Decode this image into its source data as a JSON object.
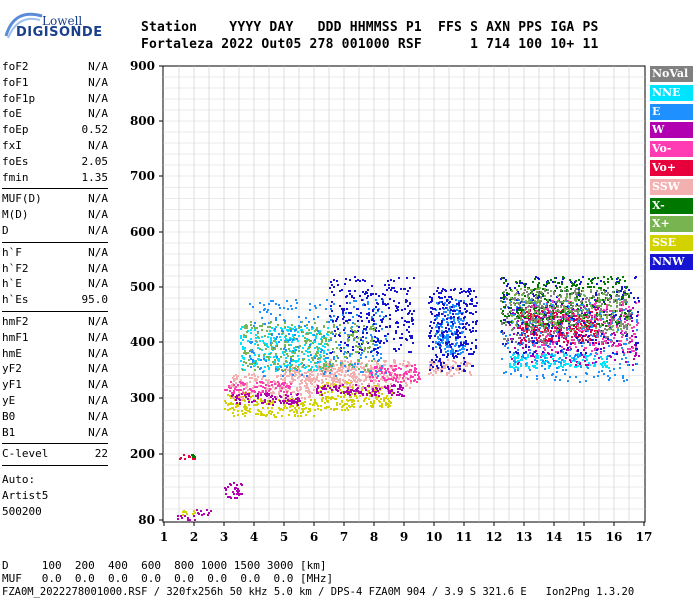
{
  "logo": {
    "top": "Lowell",
    "bottom": "DIGISONDE"
  },
  "header": {
    "labels": "Station    YYYY DAY   DDD HHMMSS P1  FFS S AXN PPS IGA PS",
    "values": "Fortaleza 2022 Out05 278 001000 RSF      1 714 100 10+ 11"
  },
  "params": {
    "group1": [
      {
        "k": "foF2",
        "v": "N/A"
      },
      {
        "k": "foF1",
        "v": "N/A"
      },
      {
        "k": "foF1p",
        "v": "N/A"
      },
      {
        "k": "foE",
        "v": "N/A"
      },
      {
        "k": "foEp",
        "v": "0.52"
      },
      {
        "k": "fxI",
        "v": "N/A"
      },
      {
        "k": "foEs",
        "v": "2.05"
      },
      {
        "k": "fmin",
        "v": "1.35"
      }
    ],
    "group2": [
      {
        "k": "MUF(D)",
        "v": "N/A"
      },
      {
        "k": "M(D)",
        "v": "N/A"
      },
      {
        "k": "D",
        "v": "N/A"
      }
    ],
    "group3": [
      {
        "k": "h`F",
        "v": "N/A"
      },
      {
        "k": "h`F2",
        "v": "N/A"
      },
      {
        "k": "h`E",
        "v": "N/A"
      },
      {
        "k": "h`Es",
        "v": "95.0"
      }
    ],
    "group4": [
      {
        "k": "hmF2",
        "v": "N/A"
      },
      {
        "k": "hmF1",
        "v": "N/A"
      },
      {
        "k": "hmE",
        "v": "N/A"
      },
      {
        "k": "yF2",
        "v": "N/A"
      },
      {
        "k": "yF1",
        "v": "N/A"
      },
      {
        "k": "yE",
        "v": "N/A"
      },
      {
        "k": "B0",
        "v": "N/A"
      },
      {
        "k": "B1",
        "v": "N/A"
      }
    ],
    "clevel": {
      "k": "C-level",
      "v": "22"
    },
    "auto": [
      "Auto:",
      "Artist5",
      "500200"
    ]
  },
  "legend": [
    {
      "label": "NoVal",
      "color": "#808080"
    },
    {
      "label": "NNE",
      "color": "#00e5ff"
    },
    {
      "label": "E",
      "color": "#1e90ff"
    },
    {
      "label": "W",
      "color": "#b000b0"
    },
    {
      "label": "Vo-",
      "color": "#ff3cb4"
    },
    {
      "label": "Vo+",
      "color": "#e8003c"
    },
    {
      "label": "SSW",
      "color": "#f2b0b0"
    },
    {
      "label": "X-",
      "color": "#007800"
    },
    {
      "label": "X+",
      "color": "#78b450"
    },
    {
      "label": "SSE",
      "color": "#d2d200"
    },
    {
      "label": "NNW",
      "color": "#1414d2"
    }
  ],
  "footer": {
    "line1": "D     100  200  400  600  800 1000 1500 3000 [km]",
    "line2": "MUF   0.0  0.0  0.0  0.0  0.0  0.0  0.0  0.0 [MHz]",
    "line3": "FZA0M_2022278001000.RSF / 320fx256h 50 kHz 5.0 km / DPS-4 FZA0M 904 / 3.9 S 321.6 E   Ion2Png 1.3.20"
  },
  "chart_data": {
    "type": "scatter",
    "title": "",
    "xlabel": "",
    "ylabel": "",
    "xlim": [
      1,
      17
    ],
    "ylim": [
      80,
      900
    ],
    "x_ticks": [
      1,
      2,
      3,
      4,
      5,
      6,
      7,
      8,
      9,
      10,
      11,
      12,
      13,
      14,
      15,
      16,
      17
    ],
    "y_ticks": [
      80,
      200,
      300,
      400,
      500,
      600,
      700,
      800,
      900
    ],
    "grid": true,
    "legend_placement": "right",
    "series": [
      {
        "name": "SSE",
        "color": "#d2d200",
        "clusters": [
          [
            3.0,
            4.0,
            270,
            310
          ],
          [
            4.0,
            6.0,
            268,
            300
          ],
          [
            6.0,
            7.2,
            280,
            330
          ],
          [
            7.2,
            8.6,
            285,
            325
          ],
          [
            1.5,
            2.0,
            90,
            100
          ]
        ]
      },
      {
        "name": "SSW",
        "color": "#f2b0b0",
        "clusters": [
          [
            3.2,
            6.0,
            300,
            345
          ],
          [
            6.0,
            9.2,
            320,
            370
          ],
          [
            9.8,
            11.2,
            340,
            370
          ],
          [
            5.0,
            8.0,
            330,
            360
          ]
        ]
      },
      {
        "name": "W",
        "color": "#b000b0",
        "clusters": [
          [
            3.2,
            5.5,
            290,
            310
          ],
          [
            6.0,
            9.0,
            305,
            325
          ],
          [
            12.5,
            16.8,
            360,
            470
          ],
          [
            1.4,
            2.0,
            80,
            90
          ],
          [
            2.0,
            2.6,
            90,
            100
          ],
          [
            3.0,
            3.6,
            120,
            150
          ]
        ]
      },
      {
        "name": "Vo-",
        "color": "#ff3cb4",
        "clusters": [
          [
            3.0,
            5.2,
            310,
            330
          ],
          [
            7.8,
            9.5,
            330,
            360
          ],
          [
            13.2,
            16.8,
            380,
            480
          ]
        ]
      },
      {
        "name": "Vo+",
        "color": "#e8003c",
        "clusters": [
          [
            1.4,
            2.0,
            192,
            200
          ],
          [
            12.8,
            15.5,
            400,
            460
          ]
        ]
      },
      {
        "name": "NNE",
        "color": "#00e5ff",
        "clusters": [
          [
            3.5,
            6.5,
            350,
            430
          ],
          [
            12.5,
            15.8,
            355,
            380
          ]
        ]
      },
      {
        "name": "E",
        "color": "#1e90ff",
        "clusters": [
          [
            3.8,
            8.4,
            340,
            480
          ],
          [
            12.2,
            16.8,
            330,
            480
          ],
          [
            10.0,
            11.0,
            380,
            480
          ]
        ]
      },
      {
        "name": "NNW",
        "color": "#1414d2",
        "clusters": [
          [
            6.5,
            9.3,
            380,
            520
          ],
          [
            9.8,
            11.4,
            350,
            500
          ],
          [
            12.2,
            16.8,
            380,
            520
          ]
        ]
      },
      {
        "name": "X-",
        "color": "#007800",
        "clusters": [
          [
            1.9,
            2.0,
            195,
            200
          ],
          [
            12.2,
            16.5,
            430,
            520
          ]
        ]
      },
      {
        "name": "X+",
        "color": "#78b450",
        "clusters": [
          [
            3.6,
            8.0,
            350,
            440
          ],
          [
            12.5,
            16.5,
            420,
            500
          ]
        ]
      },
      {
        "name": "NoVal",
        "color": "#808080",
        "clusters": [
          [
            12.2,
            16.5,
            400,
            500
          ]
        ]
      }
    ]
  }
}
